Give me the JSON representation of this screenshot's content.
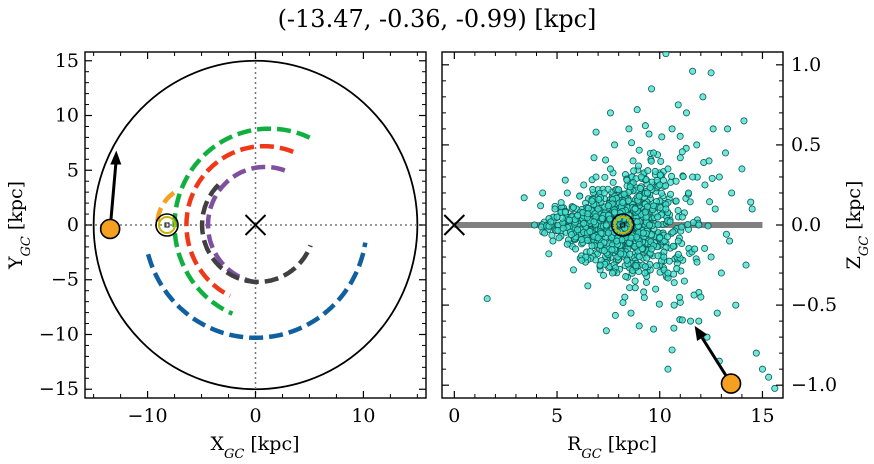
{
  "figure": {
    "title": "(-13.47, -0.36, -0.99) [kpc]"
  },
  "chart_data": [
    {
      "type": "scatter",
      "panel": "left",
      "xlabel": "X_GC [kpc]",
      "ylabel": "Y_GC [kpc]",
      "xlim": [
        -15.8,
        15.8
      ],
      "ylim": [
        -15.8,
        15.8
      ],
      "xticks": [
        -10,
        0,
        10
      ],
      "yticks": [
        -15,
        -10,
        -5,
        0,
        5,
        10,
        15
      ],
      "xtick_labels": [
        "−10",
        "0",
        "10"
      ],
      "ytick_labels": [
        "−15",
        "−10",
        "−5",
        "0",
        "5",
        "10",
        "15"
      ],
      "boundary_circle_radius": 15,
      "reference_lines": {
        "x": 0,
        "y": 0,
        "style": "dotted"
      },
      "galactic_center_marker": {
        "x": 0,
        "y": 0,
        "symbol": "x"
      },
      "sun": {
        "x": -8.2,
        "y": 0,
        "symbol": "circle-dot"
      },
      "source": {
        "x": -13.47,
        "y": -0.36,
        "color": "#f5a020"
      },
      "velocity_arrow": {
        "x0": -13.47,
        "y0": -0.36,
        "x1": -12.9,
        "y1": 6.8
      },
      "arcs": [
        {
          "color": "#1060a0",
          "cx": 0,
          "cy": 0,
          "r": 10.3,
          "start_deg": 195,
          "end_deg": 352
        },
        {
          "color": "#10b040",
          "cx": 1.3,
          "cy": 0,
          "r": 8.8,
          "start_deg": 65,
          "end_deg": 247
        },
        {
          "color": "#f5a020",
          "cx": -5.5,
          "cy": 0,
          "r": 3.6,
          "start_deg": 125,
          "end_deg": 180
        },
        {
          "color": "#f03818",
          "cx": 0.8,
          "cy": 0,
          "r": 7.2,
          "start_deg": 68,
          "end_deg": 245
        },
        {
          "color": "#8050a0",
          "cx": 0.9,
          "cy": 0,
          "r": 5.3,
          "start_deg": 70,
          "end_deg": 263
        },
        {
          "color": "#404040",
          "cx": 0.25,
          "cy": 0,
          "r": 5.2,
          "start_deg": 135,
          "end_deg": 340
        }
      ]
    },
    {
      "type": "scatter",
      "panel": "right",
      "xlabel": "R_GC [kpc]",
      "ylabel": "Z_GC [kpc]",
      "xlim": [
        -0.6,
        16.0
      ],
      "ylim": [
        -1.08,
        1.08
      ],
      "xticks": [
        0,
        5,
        10,
        15
      ],
      "yticks": [
        -1.0,
        -0.5,
        0.0,
        0.5,
        1.0
      ],
      "xtick_labels": [
        "0",
        "5",
        "10",
        "15"
      ],
      "ytick_labels": [
        "−1.0",
        "−0.5",
        "0.0",
        "0.5",
        "1.0"
      ],
      "galactic_center_marker": {
        "x": 0,
        "y": 0,
        "symbol": "x"
      },
      "sun": {
        "x": 8.2,
        "y": 0.0,
        "symbol": "circle-dot"
      },
      "disk_line": {
        "x0": 0,
        "x1": 15,
        "y": 0,
        "color": "#808080"
      },
      "source": {
        "x": 13.47,
        "y": -0.99,
        "color": "#f5a020"
      },
      "velocity_arrow": {
        "x0": 13.47,
        "y0": -0.99,
        "x1": 11.7,
        "y1": -0.63
      },
      "points_color": "#40e0d0",
      "points": [
        [
          1.6,
          -0.46
        ],
        [
          3.4,
          0.17
        ],
        [
          3.9,
          0.0
        ],
        [
          4.2,
          0.12
        ],
        [
          4.4,
          -0.05
        ],
        [
          4.7,
          0.02
        ],
        [
          4.8,
          -0.1
        ],
        [
          4.9,
          0.1
        ],
        [
          5.0,
          0.05
        ],
        [
          5.1,
          -0.08
        ],
        [
          5.2,
          0.14
        ],
        [
          5.3,
          -0.02
        ],
        [
          5.4,
          0.08
        ],
        [
          5.5,
          -0.12
        ],
        [
          5.5,
          0.2
        ],
        [
          5.6,
          0.03
        ],
        [
          5.7,
          -0.06
        ],
        [
          5.8,
          0.11
        ],
        [
          5.9,
          -0.15
        ],
        [
          6.0,
          0.06
        ],
        [
          6.0,
          -0.03
        ],
        [
          6.1,
          0.18
        ],
        [
          6.2,
          -0.09
        ],
        [
          6.3,
          0.01
        ],
        [
          6.3,
          0.25
        ],
        [
          6.4,
          -0.2
        ],
        [
          6.5,
          0.07
        ],
        [
          6.6,
          -0.04
        ],
        [
          6.7,
          0.15
        ],
        [
          6.7,
          -0.13
        ],
        [
          6.8,
          0.02
        ],
        [
          6.9,
          0.3
        ],
        [
          7.0,
          -0.08
        ],
        [
          7.0,
          0.1
        ],
        [
          7.1,
          -0.25
        ],
        [
          7.2,
          0.04
        ],
        [
          7.3,
          0.2
        ],
        [
          7.3,
          -0.16
        ],
        [
          7.4,
          0.0
        ],
        [
          7.5,
          0.12
        ],
        [
          7.5,
          -0.05
        ],
        [
          7.6,
          0.35
        ],
        [
          7.7,
          -0.3
        ],
        [
          7.8,
          0.08
        ],
        [
          7.9,
          -0.1
        ],
        [
          8.0,
          0.22
        ],
        [
          8.0,
          0.04
        ],
        [
          8.1,
          -0.18
        ],
        [
          8.2,
          0.14
        ],
        [
          8.3,
          -0.02
        ],
        [
          8.4,
          0.28
        ],
        [
          8.4,
          -0.22
        ],
        [
          8.5,
          0.06
        ],
        [
          8.6,
          -0.08
        ],
        [
          8.7,
          0.4
        ],
        [
          8.8,
          0.1
        ],
        [
          8.8,
          -0.35
        ],
        [
          8.9,
          0.02
        ],
        [
          9.0,
          0.18
        ],
        [
          9.0,
          -0.12
        ],
        [
          9.1,
          0.3
        ],
        [
          9.2,
          -0.05
        ],
        [
          9.3,
          0.08
        ],
        [
          9.3,
          -0.26
        ],
        [
          9.4,
          0.2
        ],
        [
          9.5,
          0.0
        ],
        [
          9.6,
          -0.15
        ],
        [
          9.7,
          0.45
        ],
        [
          9.7,
          0.12
        ],
        [
          9.8,
          -0.4
        ],
        [
          9.9,
          0.05
        ],
        [
          10.0,
          0.25
        ],
        [
          10.0,
          -0.08
        ],
        [
          10.1,
          0.55
        ],
        [
          10.2,
          -0.2
        ],
        [
          10.3,
          0.1
        ],
        [
          10.4,
          0.35
        ],
        [
          10.4,
          -0.3
        ],
        [
          10.5,
          0.02
        ],
        [
          10.6,
          0.6
        ],
        [
          10.7,
          -0.5
        ],
        [
          10.8,
          0.15
        ],
        [
          10.9,
          -0.1
        ],
        [
          11.0,
          0.42
        ],
        [
          11.1,
          0.05
        ],
        [
          11.2,
          -0.35
        ],
        [
          11.3,
          0.7
        ],
        [
          11.4,
          0.2
        ],
        [
          11.5,
          -0.6
        ],
        [
          11.6,
          0.3
        ],
        [
          11.7,
          -0.15
        ],
        [
          11.8,
          0.5
        ],
        [
          11.9,
          0.0
        ],
        [
          12.0,
          -0.45
        ],
        [
          12.1,
          0.8
        ],
        [
          12.2,
          0.25
        ],
        [
          12.3,
          -0.7
        ],
        [
          12.4,
          0.4
        ],
        [
          12.5,
          -0.2
        ],
        [
          12.6,
          0.6
        ],
        [
          12.7,
          0.1
        ],
        [
          12.8,
          -0.55
        ],
        [
          12.9,
          0.3
        ],
        [
          13.0,
          -0.3
        ],
        [
          13.2,
          0.45
        ],
        [
          13.4,
          -0.1
        ],
        [
          13.5,
          0.2
        ],
        [
          13.7,
          -0.5
        ],
        [
          14.0,
          0.35
        ],
        [
          14.2,
          -0.25
        ],
        [
          14.5,
          0.1
        ],
        [
          14.7,
          -0.8
        ],
        [
          15.0,
          -0.9
        ],
        [
          15.3,
          -0.95
        ],
        [
          15.6,
          -1.02
        ],
        [
          9.6,
          0.85
        ],
        [
          10.3,
          1.07
        ],
        [
          11.6,
          0.96
        ],
        [
          10.9,
          0.75
        ],
        [
          8.5,
          0.6
        ],
        [
          7.8,
          0.5
        ],
        [
          6.8,
          0.42
        ],
        [
          8.6,
          -0.55
        ],
        [
          9.0,
          -0.63
        ],
        [
          7.4,
          -0.66
        ],
        [
          9.7,
          -0.65
        ],
        [
          10.6,
          -0.78
        ],
        [
          8.3,
          -0.45
        ],
        [
          6.5,
          -0.38
        ],
        [
          5.8,
          -0.28
        ],
        [
          12.5,
          0.95
        ],
        [
          13.3,
          0.6
        ],
        [
          14.1,
          0.65
        ],
        [
          12.9,
          -0.85
        ],
        [
          11.9,
          -0.6
        ],
        [
          10.4,
          -0.9
        ],
        [
          6.9,
          0.58
        ],
        [
          7.6,
          0.7
        ],
        [
          8.9,
          0.72
        ],
        [
          9.3,
          0.62
        ],
        [
          6.2,
          -0.22
        ],
        [
          5.4,
          0.28
        ],
        [
          4.6,
          -0.18
        ],
        [
          4.3,
          0.2
        ]
      ]
    }
  ]
}
